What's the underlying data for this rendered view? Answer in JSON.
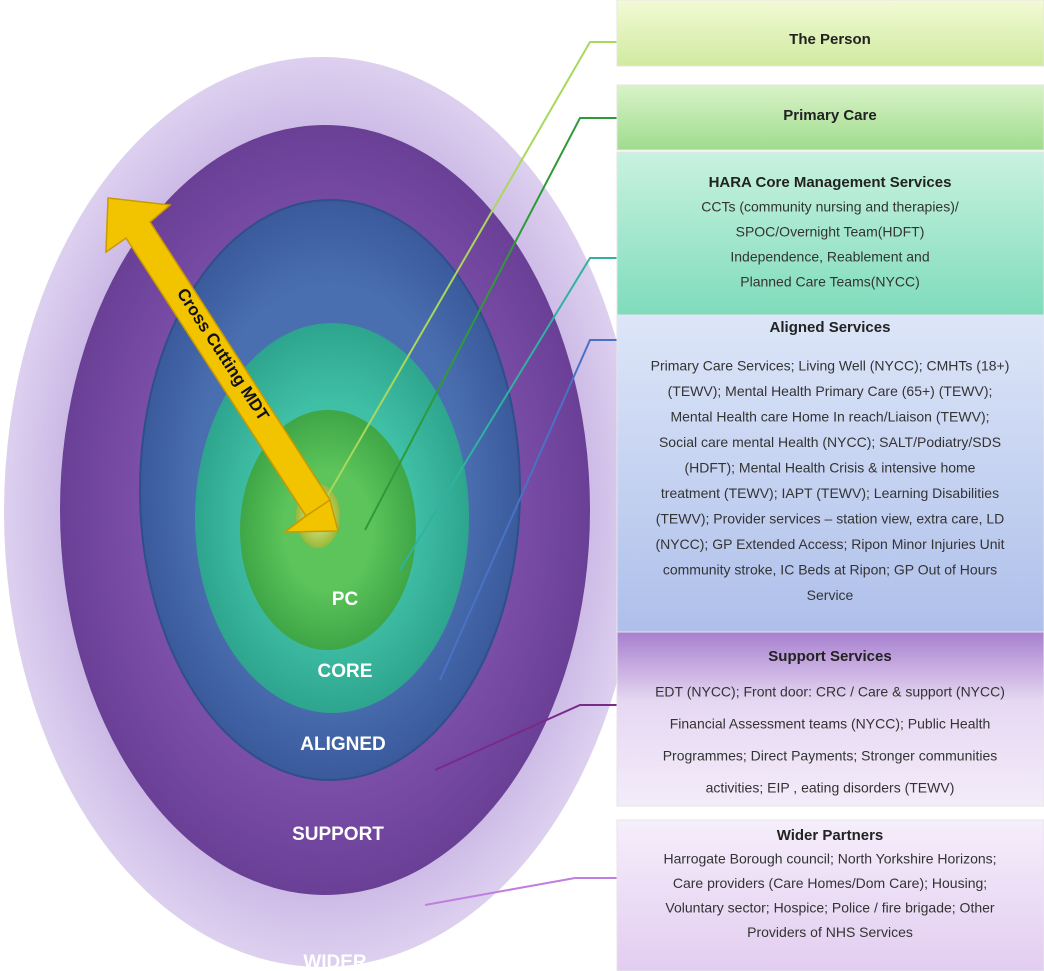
{
  "rings": [
    {
      "label": "PC"
    },
    {
      "label": "CORE"
    },
    {
      "label": "ALIGNED"
    },
    {
      "label": "SUPPORT"
    },
    {
      "label": "WIDER"
    }
  ],
  "arrow": {
    "label": "Cross Cutting MDT"
  },
  "panels": [
    {
      "title": "The Person",
      "lines": []
    },
    {
      "title": "Primary Care",
      "lines": []
    },
    {
      "title": "HARA Core Management Services",
      "lines": [
        "CCTs (community nursing and therapies)/",
        "SPOC/Overnight Team(HDFT)",
        "Independence, Reablement and",
        "Planned Care Teams(NYCC)"
      ]
    },
    {
      "title": "Aligned Services",
      "lines": [
        "Primary Care Services; Living Well (NYCC); CMHTs (18+)",
        "(TEWV); Mental Health Primary Care (65+) (TEWV);",
        "Mental Health care Home In reach/Liaison  (TEWV);",
        "Social care mental Health (NYCC); SALT/Podiatry/SDS",
        "(HDFT); Mental Health Crisis & intensive home",
        "treatment (TEWV); IAPT (TEWV); Learning Disabilities",
        "(TEWV); Provider services – station view, extra care, LD",
        "(NYCC); GP Extended Access; Ripon Minor Injuries Unit",
        "community stroke, IC Beds at Ripon; GP Out of Hours",
        "Service"
      ]
    },
    {
      "title": "Support Services",
      "lines": [
        "EDT (NYCC); Front door: CRC / Care & support (NYCC)",
        "Financial Assessment teams (NYCC); Public Health",
        "Programmes; Direct Payments; Stronger communities",
        "activities;  EIP , eating disorders (TEWV)"
      ]
    },
    {
      "title": "Wider Partners",
      "lines": [
        "Harrogate Borough council; North Yorkshire  Horizons;",
        "Care providers (Care Homes/Dom Care); Housing;",
        "Voluntary sector; Hospice; Police / fire brigade; Other",
        "Providers of NHS Services"
      ]
    }
  ]
}
